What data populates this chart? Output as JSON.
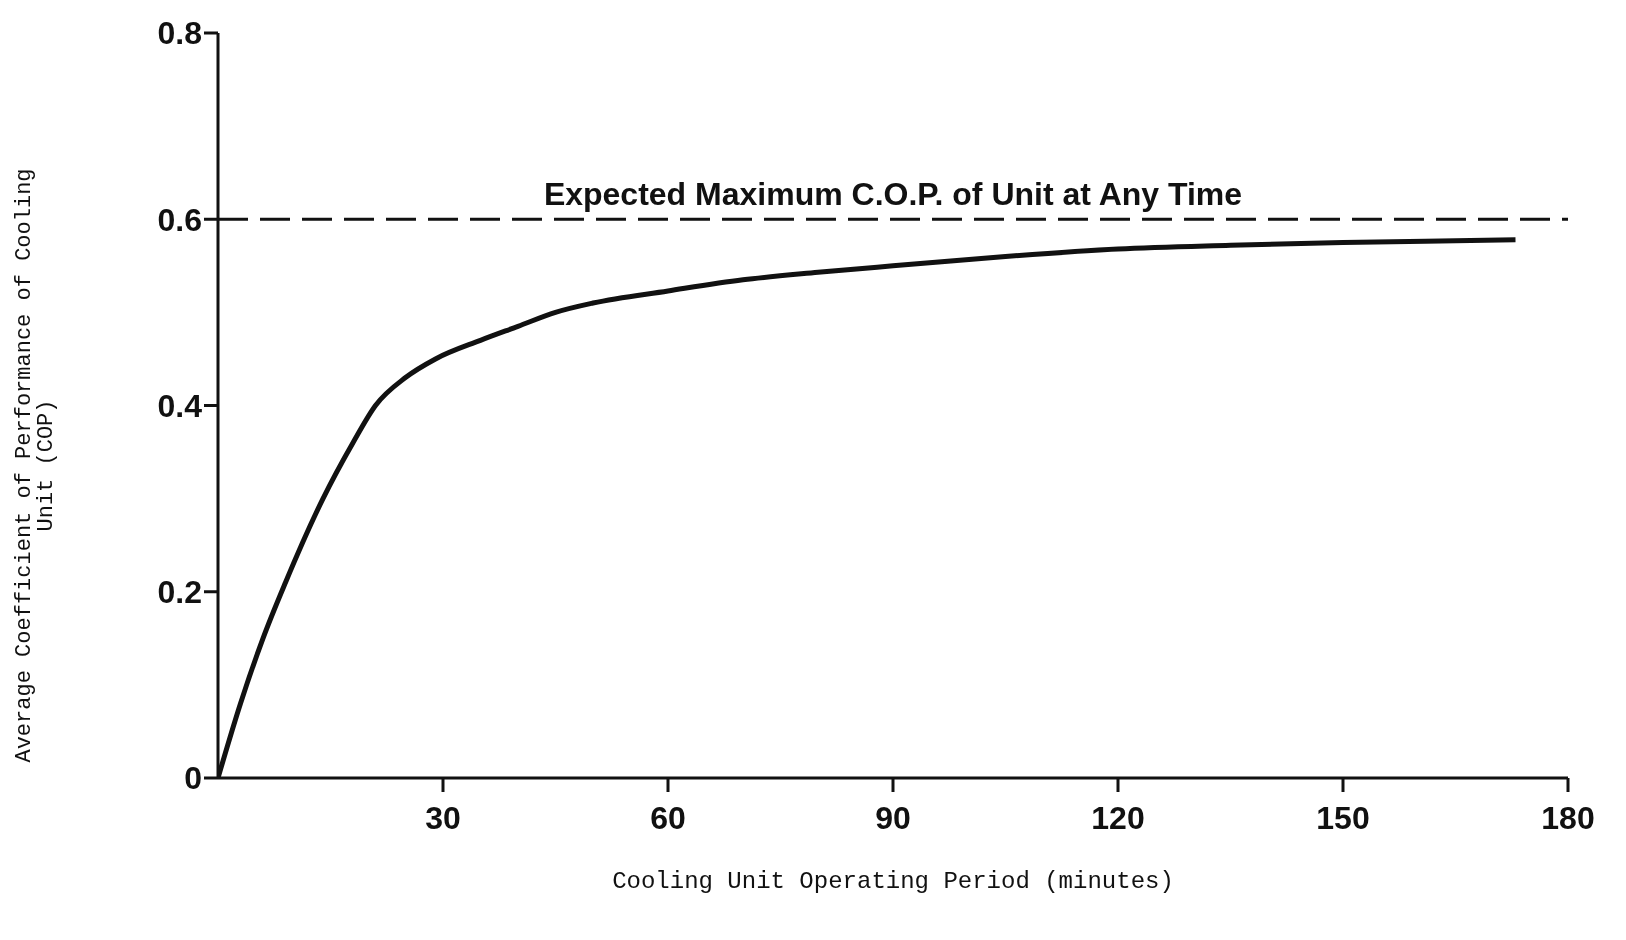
{
  "chart_data": {
    "type": "line",
    "xlabel": "Cooling Unit Operating Period (minutes)",
    "ylabel": "Average Coefficient of Performance of Cooling Unit (COP)",
    "x": [
      0,
      3,
      6,
      9,
      14,
      18,
      21,
      25,
      29,
      35,
      40,
      45,
      50,
      60,
      70,
      80,
      90,
      105,
      120,
      135,
      150,
      165,
      173
    ],
    "series": [
      {
        "color": "#111111",
        "values": [
          0,
          0.08,
          0.15,
          0.21,
          0.3,
          0.36,
          0.4,
          0.43,
          0.45,
          0.47,
          0.485,
          0.5,
          0.51,
          0.523,
          0.535,
          0.543,
          0.55,
          0.56,
          0.568,
          0.572,
          0.575,
          0.577,
          0.578
        ]
      }
    ],
    "xlim": [
      0,
      180
    ],
    "xticks": [
      30,
      60,
      90,
      120,
      150,
      180
    ],
    "ylim": [
      0,
      0.8
    ],
    "yticks": [
      0,
      0.2,
      0.4,
      0.6,
      0.8
    ],
    "ref_lines": [
      {
        "axis": "y",
        "value": 0.6,
        "label": "Expected Maximum C.O.P. of Unit at Any Time",
        "line_style": "dashed"
      }
    ],
    "grid": false,
    "marker": "none",
    "line_style": "solid"
  }
}
